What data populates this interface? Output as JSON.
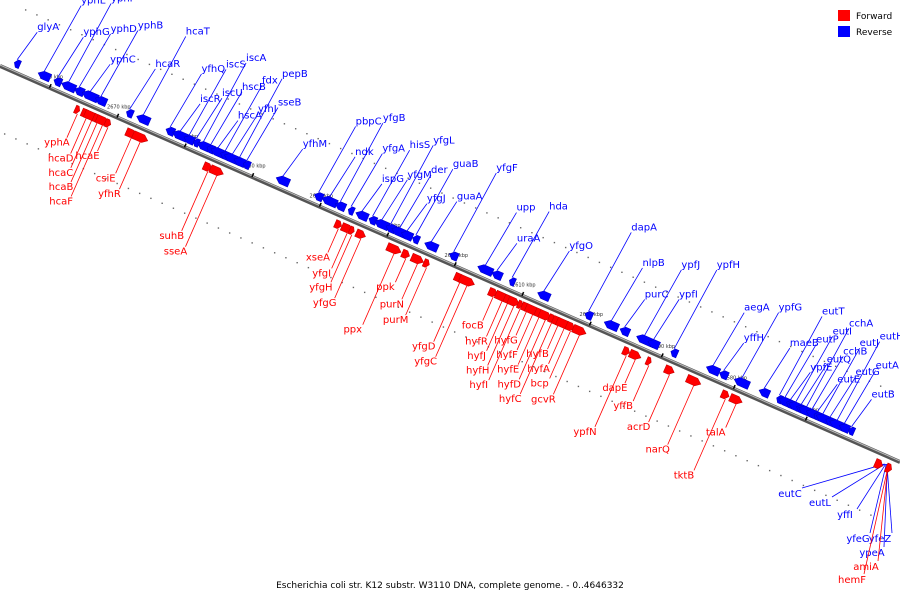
{
  "caption": "Escherichia coli str. K12 substr. W3110 DNA, complete genome. - 0..4646332",
  "legend": [
    {
      "label": "Forward",
      "color": "#ff0000"
    },
    {
      "label": "Reverse",
      "color": "#0000ff"
    }
  ],
  "colors": {
    "forward_stroke": "#c80000",
    "reverse_stroke": "#0000c8",
    "axis": "#555555"
  },
  "ticks": [
    {
      "label": "2680 kbp",
      "t": 0.055
    },
    {
      "label": "2670 kbp",
      "t": 0.13
    },
    {
      "label": "2660 kbp",
      "t": 0.205
    },
    {
      "label": "2650 kbp",
      "t": 0.28
    },
    {
      "label": "2640 kbp",
      "t": 0.355
    },
    {
      "label": "2630 kbp",
      "t": 0.43
    },
    {
      "label": "2620 kbp",
      "t": 0.505
    },
    {
      "label": "2610 kbp",
      "t": 0.58
    },
    {
      "label": "2600 kbp",
      "t": 0.655
    },
    {
      "label": "2590 kbp",
      "t": 0.735
    },
    {
      "label": "2580 kbp",
      "t": 0.815
    },
    {
      "label": "2570 kbp",
      "t": 0.895
    }
  ],
  "reverse_genes": [
    {
      "name": "glyA",
      "t": 0.015
    },
    {
      "name": "yphE",
      "t": 0.045
    },
    {
      "name": "yphG",
      "t": 0.06
    },
    {
      "name": "yphF",
      "t": 0.072
    },
    {
      "name": "yphD",
      "t": 0.084
    },
    {
      "name": "yphC",
      "t": 0.096
    },
    {
      "name": "yphB",
      "t": 0.108
    },
    {
      "name": "hcaR",
      "t": 0.14
    },
    {
      "name": "hcaT",
      "t": 0.155
    },
    {
      "name": "yfhQ",
      "t": 0.185
    },
    {
      "name": "iscR",
      "t": 0.196
    },
    {
      "name": "iscS",
      "t": 0.206
    },
    {
      "name": "iscU",
      "t": 0.214
    },
    {
      "name": "iscA",
      "t": 0.222
    },
    {
      "name": "hscB",
      "t": 0.23
    },
    {
      "name": "hscA",
      "t": 0.238
    },
    {
      "name": "fdx",
      "t": 0.246
    },
    {
      "name": "yfhJ",
      "t": 0.254
    },
    {
      "name": "pepB",
      "t": 0.262
    },
    {
      "name": "sseB",
      "t": 0.27
    },
    {
      "name": "yfhM",
      "t": 0.31
    },
    {
      "name": "pbpC",
      "t": 0.35
    },
    {
      "name": "ndk",
      "t": 0.362
    },
    {
      "name": "yfgB",
      "t": 0.374
    },
    {
      "name": "yfgA",
      "t": 0.386
    },
    {
      "name": "ispG",
      "t": 0.398
    },
    {
      "name": "hisS",
      "t": 0.41
    },
    {
      "name": "yfgM",
      "t": 0.42
    },
    {
      "name": "yfgL",
      "t": 0.43
    },
    {
      "name": "der",
      "t": 0.44
    },
    {
      "name": "yfgJ",
      "t": 0.448
    },
    {
      "name": "guaB",
      "t": 0.458
    },
    {
      "name": "guaA",
      "t": 0.475
    },
    {
      "name": "yfgF",
      "t": 0.5
    },
    {
      "name": "upp",
      "t": 0.535
    },
    {
      "name": "uraA",
      "t": 0.548
    },
    {
      "name": "hda",
      "t": 0.565
    },
    {
      "name": "yfgO",
      "t": 0.6
    },
    {
      "name": "dapA",
      "t": 0.65
    },
    {
      "name": "nlpB",
      "t": 0.675
    },
    {
      "name": "purC",
      "t": 0.69
    },
    {
      "name": "ypfJ",
      "t": 0.712
    },
    {
      "name": "ypfI",
      "t": 0.722
    },
    {
      "name": "ypfH",
      "t": 0.745
    },
    {
      "name": "aegA",
      "t": 0.788
    },
    {
      "name": "yffH",
      "t": 0.8
    },
    {
      "name": "ypfG",
      "t": 0.82
    },
    {
      "name": "maeB",
      "t": 0.845
    },
    {
      "name": "eutT",
      "t": 0.862
    },
    {
      "name": "eutP",
      "t": 0.868
    },
    {
      "name": "ypfE",
      "t": 0.874
    },
    {
      "name": "eutI",
      "t": 0.88
    },
    {
      "name": "eutQ",
      "t": 0.886
    },
    {
      "name": "cchA",
      "t": 0.892
    },
    {
      "name": "cchB",
      "t": 0.898
    },
    {
      "name": "eutE",
      "t": 0.904
    },
    {
      "name": "eutJ",
      "t": 0.91
    },
    {
      "name": "eutG",
      "t": 0.918
    },
    {
      "name": "eutH",
      "t": 0.926
    },
    {
      "name": "eutA",
      "t": 0.934
    },
    {
      "name": "eutB",
      "t": 0.942
    }
  ],
  "forward_genes": [
    {
      "name": "yphA",
      "t": 0.09
    },
    {
      "name": "hcaD",
      "t": 0.1
    },
    {
      "name": "hcaC",
      "t": 0.106
    },
    {
      "name": "hcaB",
      "t": 0.112
    },
    {
      "name": "hcaF",
      "t": 0.118
    },
    {
      "name": "hcaE",
      "t": 0.124
    },
    {
      "name": "csiE",
      "t": 0.15
    },
    {
      "name": "yfhR",
      "t": 0.16
    },
    {
      "name": "suhB",
      "t": 0.235
    },
    {
      "name": "sseA",
      "t": 0.245
    },
    {
      "name": "xseA",
      "t": 0.38
    },
    {
      "name": "yfgI",
      "t": 0.39
    },
    {
      "name": "yfgH",
      "t": 0.395
    },
    {
      "name": "yfgG",
      "t": 0.405
    },
    {
      "name": "ppx",
      "t": 0.442
    },
    {
      "name": "ppk",
      "t": 0.455
    },
    {
      "name": "purN",
      "t": 0.468
    },
    {
      "name": "purM",
      "t": 0.478
    },
    {
      "name": "yfgD",
      "t": 0.515
    },
    {
      "name": "yfgC",
      "t": 0.523
    },
    {
      "name": "focB",
      "t": 0.552
    },
    {
      "name": "hyfR",
      "t": 0.562
    },
    {
      "name": "hyfJ",
      "t": 0.568
    },
    {
      "name": "hyfH",
      "t": 0.575
    },
    {
      "name": "hyfI",
      "t": 0.582
    },
    {
      "name": "hyfG",
      "t": 0.589
    },
    {
      "name": "hyfF",
      "t": 0.596
    },
    {
      "name": "hyfE",
      "t": 0.603
    },
    {
      "name": "hyfD",
      "t": 0.61
    },
    {
      "name": "hyfC",
      "t": 0.617
    },
    {
      "name": "hyfB",
      "t": 0.624
    },
    {
      "name": "hyfA",
      "t": 0.631
    },
    {
      "name": "bcp",
      "t": 0.638
    },
    {
      "name": "gcvR",
      "t": 0.648
    },
    {
      "name": "ypfN",
      "t": 0.7
    },
    {
      "name": "dapE",
      "t": 0.71
    },
    {
      "name": "yffB",
      "t": 0.725
    },
    {
      "name": "acrD",
      "t": 0.748
    },
    {
      "name": "narQ",
      "t": 0.775
    },
    {
      "name": "tktB",
      "t": 0.81
    },
    {
      "name": "talA",
      "t": 0.822
    }
  ],
  "bottom_right_labels": [
    {
      "name": "eutC",
      "color": "reverse"
    },
    {
      "name": "eutL",
      "color": "reverse"
    },
    {
      "name": "yffI",
      "color": "reverse"
    },
    {
      "name": "yfeG",
      "color": "reverse"
    },
    {
      "name": "yfeZ",
      "color": "reverse"
    },
    {
      "name": "ypeA",
      "color": "reverse"
    },
    {
      "name": "amiA",
      "color": "forward"
    },
    {
      "name": "hemF",
      "color": "forward"
    }
  ]
}
